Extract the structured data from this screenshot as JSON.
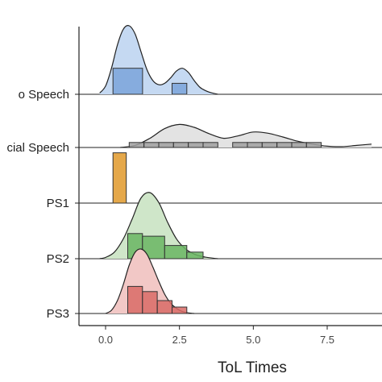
{
  "chart_data": {
    "type": "ridgeline",
    "xlabel": "ToL Times",
    "ylabel": "",
    "title": "",
    "xlim": [
      -1.0,
      9.0
    ],
    "x_ticks": [
      {
        "value": 0,
        "label": "0.0"
      },
      {
        "value": 2.5,
        "label": "2.5"
      },
      {
        "value": 5,
        "label": "5.0"
      },
      {
        "value": 7.5,
        "label": "7.5"
      }
    ],
    "grid": false,
    "legend": "none",
    "series": [
      {
        "name": "o Speech",
        "color": "#c5d9f2",
        "hist_color": "#7aa3db",
        "density": {
          "x": [
            -0.2,
            0.0,
            0.2,
            0.4,
            0.6,
            0.8,
            1.0,
            1.2,
            1.4,
            1.6,
            1.8,
            2.0,
            2.2,
            2.4,
            2.6,
            2.8,
            3.0,
            3.2,
            3.4,
            3.6,
            3.8
          ],
          "y": [
            0.02,
            0.12,
            0.38,
            0.72,
            0.95,
            1.0,
            0.88,
            0.62,
            0.36,
            0.2,
            0.14,
            0.16,
            0.24,
            0.34,
            0.38,
            0.32,
            0.2,
            0.1,
            0.05,
            0.02,
            0.0
          ]
        },
        "histogram": {
          "edges": [
            0.25,
            1.25,
            2.25,
            2.75
          ],
          "heights": [
            0.38,
            0.0,
            0.16
          ]
        }
      },
      {
        "name": "cial Speech",
        "color": "#e3e3e3",
        "hist_color": "#a0a0a0",
        "density": {
          "x": [
            0.5,
            1.0,
            1.5,
            2.0,
            2.5,
            3.0,
            3.5,
            4.0,
            4.5,
            5.0,
            5.5,
            6.0,
            6.5,
            7.0,
            7.5,
            8.0,
            8.5,
            9.0
          ],
          "y": [
            0.0,
            0.05,
            0.22,
            0.45,
            0.55,
            0.48,
            0.33,
            0.22,
            0.28,
            0.37,
            0.34,
            0.25,
            0.15,
            0.08,
            0.03,
            0.02,
            0.05,
            0.08
          ]
        },
        "histogram": {
          "edges": [
            0.8,
            1.3,
            1.8,
            2.3,
            2.8,
            3.3,
            3.8,
            4.3,
            4.8,
            5.3,
            5.8,
            6.3,
            6.8,
            7.3,
            7.8,
            8.3
          ],
          "heights": [
            0.12,
            0.12,
            0.12,
            0.12,
            0.12,
            0.12,
            0.0,
            0.12,
            0.12,
            0.12,
            0.12,
            0.12,
            0.12,
            0.0,
            0.0
          ]
        }
      },
      {
        "name": "PS1",
        "color": "#f5d096",
        "hist_color": "#e5a84a",
        "density": {
          "x": [
            0.25,
            0.7
          ],
          "y": [
            1.3,
            1.3
          ]
        },
        "histogram": {
          "edges": [
            0.25,
            0.7
          ],
          "heights": [
            1.3
          ]
        }
      },
      {
        "name": "PS2",
        "color": "#cfe6c9",
        "hist_color": "#6ab563",
        "density": {
          "x": [
            -0.2,
            0.0,
            0.3,
            0.6,
            0.9,
            1.2,
            1.5,
            1.8,
            2.1,
            2.4,
            2.7,
            3.0,
            3.3,
            3.6,
            3.8
          ],
          "y": [
            0.0,
            0.02,
            0.1,
            0.3,
            0.6,
            0.92,
            1.0,
            0.85,
            0.55,
            0.3,
            0.15,
            0.07,
            0.03,
            0.01,
            0.0
          ]
        },
        "histogram": {
          "edges": [
            0.75,
            1.25,
            2.0,
            2.75,
            3.3
          ],
          "heights": [
            0.38,
            0.34,
            0.2,
            0.1
          ]
        }
      },
      {
        "name": "PS3",
        "color": "#f2c8c6",
        "hist_color": "#d96b66",
        "density": {
          "x": [
            0.0,
            0.2,
            0.4,
            0.6,
            0.8,
            1.0,
            1.2,
            1.4,
            1.6,
            1.8,
            2.0,
            2.2,
            2.4,
            2.6,
            2.8,
            3.0
          ],
          "y": [
            0.0,
            0.05,
            0.2,
            0.45,
            0.75,
            0.95,
            1.0,
            0.92,
            0.72,
            0.5,
            0.3,
            0.16,
            0.08,
            0.03,
            0.01,
            0.0
          ]
        },
        "histogram": {
          "edges": [
            0.75,
            1.25,
            1.75,
            2.25,
            2.75
          ],
          "heights": [
            0.42,
            0.34,
            0.2,
            0.1
          ]
        }
      }
    ]
  }
}
